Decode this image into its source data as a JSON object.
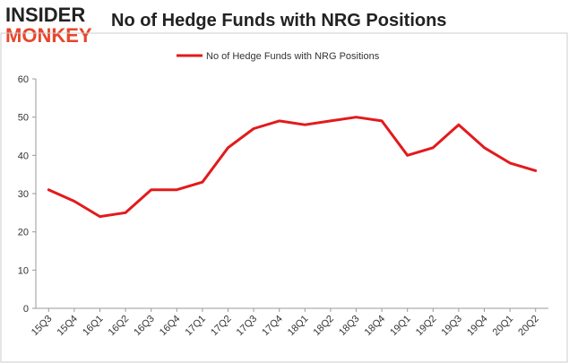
{
  "logo": {
    "line1": "INSIDER",
    "line2": "MONKEY"
  },
  "colors": {
    "line": "#e31a1c",
    "logo_accent": "#e8452c",
    "axis": "#999999",
    "border": "#cccccc"
  },
  "chart_data": {
    "type": "line",
    "title": "No of Hedge Funds with NRG Positions",
    "xlabel": "",
    "ylabel": "",
    "ylim": [
      0,
      60
    ],
    "yticks": [
      0,
      10,
      20,
      30,
      40,
      50,
      60
    ],
    "grid": false,
    "legend_position": "top-center",
    "categories": [
      "15Q3",
      "15Q4",
      "16Q1",
      "16Q2",
      "16Q3",
      "16Q4",
      "17Q1",
      "17Q2",
      "17Q3",
      "17Q4",
      "18Q1",
      "18Q2",
      "18Q3",
      "18Q4",
      "19Q1",
      "19Q2",
      "19Q3",
      "19Q4",
      "20Q1",
      "20Q2"
    ],
    "series": [
      {
        "name": "No of Hedge Funds with NRG Positions",
        "values": [
          31,
          28,
          24,
          25,
          31,
          31,
          33,
          42,
          47,
          49,
          48,
          49,
          50,
          49,
          40,
          42,
          48,
          42,
          38,
          36
        ]
      }
    ]
  }
}
